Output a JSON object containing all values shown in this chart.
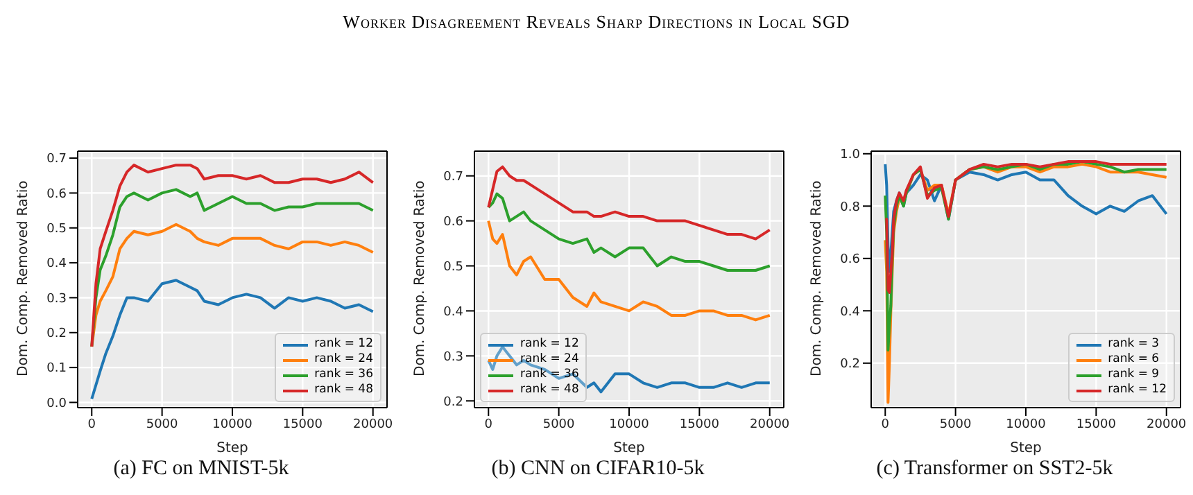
{
  "chart_data": [
    {
      "type": "line",
      "title": "(a) FC on MNIST-5k",
      "annotations": [
        "Worker Disagreement Reveals Sharp Directions in Local SGD"
      ],
      "xlabel": "Step",
      "ylabel": "Dom. Comp. Removed Ratio",
      "x": [
        0,
        300,
        600,
        1000,
        1500,
        2000,
        2500,
        3000,
        4000,
        5000,
        6000,
        7000,
        7500,
        8000,
        9000,
        10000,
        11000,
        12000,
        13000,
        14000,
        15000,
        16000,
        17000,
        18000,
        19000,
        20000
      ],
      "series": [
        {
          "name": "rank = 12",
          "color": "#1f77b4",
          "values": [
            0.01,
            0.05,
            0.09,
            0.14,
            0.19,
            0.25,
            0.3,
            0.3,
            0.29,
            0.34,
            0.35,
            0.33,
            0.32,
            0.29,
            0.28,
            0.3,
            0.31,
            0.3,
            0.27,
            0.3,
            0.29,
            0.3,
            0.29,
            0.27,
            0.28,
            0.26
          ]
        },
        {
          "name": "rank = 24",
          "color": "#ff7f0e",
          "values": [
            0.16,
            0.25,
            0.29,
            0.32,
            0.36,
            0.44,
            0.47,
            0.49,
            0.48,
            0.49,
            0.51,
            0.49,
            0.47,
            0.46,
            0.45,
            0.47,
            0.47,
            0.47,
            0.45,
            0.44,
            0.46,
            0.46,
            0.45,
            0.46,
            0.45,
            0.43
          ]
        },
        {
          "name": "rank = 36",
          "color": "#2ca02c",
          "values": [
            0.16,
            0.3,
            0.38,
            0.42,
            0.48,
            0.56,
            0.59,
            0.6,
            0.58,
            0.6,
            0.61,
            0.59,
            0.6,
            0.55,
            0.57,
            0.59,
            0.57,
            0.57,
            0.55,
            0.56,
            0.56,
            0.57,
            0.57,
            0.57,
            0.57,
            0.55
          ]
        },
        {
          "name": "rank = 48",
          "color": "#d62728",
          "values": [
            0.16,
            0.34,
            0.44,
            0.49,
            0.55,
            0.62,
            0.66,
            0.68,
            0.66,
            0.67,
            0.68,
            0.68,
            0.67,
            0.64,
            0.65,
            0.65,
            0.64,
            0.65,
            0.63,
            0.63,
            0.64,
            0.64,
            0.63,
            0.64,
            0.66,
            0.63
          ]
        }
      ],
      "xlim": [
        -1000,
        21000
      ],
      "xticks": [
        0,
        5000,
        10000,
        15000,
        20000
      ],
      "ylim": [
        -0.015,
        0.72
      ],
      "yticks": [
        {
          "value": 0,
          "label": "0.0"
        },
        0.1,
        0.2,
        0.3,
        0.4,
        0.5,
        0.6,
        0.7
      ],
      "grid": true,
      "legend": "bottom right"
    },
    {
      "type": "line",
      "title": "(b) CNN on CIFAR10-5k",
      "xlabel": "Step",
      "ylabel": "Dom. Comp. Removed Ratio",
      "x": [
        0,
        300,
        600,
        1000,
        1500,
        2000,
        2500,
        3000,
        4000,
        5000,
        6000,
        7000,
        7500,
        8000,
        9000,
        10000,
        11000,
        12000,
        13000,
        14000,
        15000,
        16000,
        17000,
        18000,
        19000,
        20000
      ],
      "series": [
        {
          "name": "rank = 12",
          "color": "#1f77b4",
          "values": [
            0.29,
            0.27,
            0.3,
            0.32,
            0.3,
            0.28,
            0.29,
            0.28,
            0.27,
            0.25,
            0.26,
            0.23,
            0.24,
            0.22,
            0.26,
            0.26,
            0.24,
            0.23,
            0.24,
            0.24,
            0.23,
            0.23,
            0.24,
            0.23,
            0.24,
            0.24
          ]
        },
        {
          "name": "rank = 24",
          "color": "#ff7f0e",
          "values": [
            0.6,
            0.56,
            0.55,
            0.57,
            0.5,
            0.48,
            0.51,
            0.52,
            0.47,
            0.47,
            0.43,
            0.41,
            0.44,
            0.42,
            0.41,
            0.4,
            0.42,
            0.41,
            0.39,
            0.39,
            0.4,
            0.4,
            0.39,
            0.39,
            0.38,
            0.39
          ]
        },
        {
          "name": "rank = 36",
          "color": "#2ca02c",
          "values": [
            0.63,
            0.64,
            0.66,
            0.65,
            0.6,
            0.61,
            0.62,
            0.6,
            0.58,
            0.56,
            0.55,
            0.56,
            0.53,
            0.54,
            0.52,
            0.54,
            0.54,
            0.5,
            0.52,
            0.51,
            0.51,
            0.5,
            0.49,
            0.49,
            0.49,
            0.5
          ]
        },
        {
          "name": "rank = 48",
          "color": "#d62728",
          "values": [
            0.63,
            0.67,
            0.71,
            0.72,
            0.7,
            0.69,
            0.69,
            0.68,
            0.66,
            0.64,
            0.62,
            0.62,
            0.61,
            0.61,
            0.62,
            0.61,
            0.61,
            0.6,
            0.6,
            0.6,
            0.59,
            0.58,
            0.57,
            0.57,
            0.56,
            0.58
          ]
        }
      ],
      "xlim": [
        -1000,
        21000
      ],
      "xticks": [
        0,
        5000,
        10000,
        15000,
        20000
      ],
      "ylim": [
        0.185,
        0.755
      ],
      "yticks": [
        0.2,
        0.3,
        0.4,
        0.5,
        0.6,
        0.7
      ],
      "grid": true,
      "legend": "bottom left"
    },
    {
      "type": "line",
      "title": "(c) Transformer on SST2-5k",
      "xlabel": "Step",
      "ylabel": "Dom. Comp. Removed Ratio",
      "x": [
        0,
        100,
        200,
        300,
        400,
        500,
        600,
        800,
        1000,
        1300,
        1500,
        2000,
        2500,
        3000,
        3500,
        4000,
        4500,
        5000,
        6000,
        7000,
        8000,
        9000,
        10000,
        11000,
        12000,
        13000,
        14000,
        15000,
        16000,
        17000,
        18000,
        19000,
        20000
      ],
      "series": [
        {
          "name": "rank = 3",
          "color": "#1f77b4",
          "values": [
            0.96,
            0.88,
            0.65,
            0.55,
            0.62,
            0.7,
            0.78,
            0.82,
            0.85,
            0.8,
            0.85,
            0.88,
            0.92,
            0.9,
            0.82,
            0.88,
            0.75,
            0.9,
            0.93,
            0.92,
            0.9,
            0.92,
            0.93,
            0.9,
            0.9,
            0.84,
            0.8,
            0.77,
            0.8,
            0.78,
            0.82,
            0.84,
            0.77
          ]
        },
        {
          "name": "rank = 6",
          "color": "#ff7f0e",
          "values": [
            0.67,
            0.55,
            0.05,
            0.2,
            0.4,
            0.55,
            0.7,
            0.78,
            0.83,
            0.82,
            0.85,
            0.92,
            0.94,
            0.86,
            0.88,
            0.88,
            0.77,
            0.9,
            0.94,
            0.95,
            0.93,
            0.95,
            0.95,
            0.93,
            0.95,
            0.95,
            0.96,
            0.95,
            0.93,
            0.93,
            0.93,
            0.92,
            0.91
          ]
        },
        {
          "name": "rank = 9",
          "color": "#2ca02c",
          "values": [
            0.84,
            0.7,
            0.25,
            0.35,
            0.42,
            0.6,
            0.72,
            0.8,
            0.84,
            0.8,
            0.85,
            0.92,
            0.94,
            0.84,
            0.86,
            0.87,
            0.75,
            0.9,
            0.94,
            0.95,
            0.94,
            0.95,
            0.96,
            0.94,
            0.96,
            0.96,
            0.97,
            0.96,
            0.95,
            0.93,
            0.94,
            0.94,
            0.94
          ]
        },
        {
          "name": "rank = 12",
          "color": "#d62728",
          "values": [
            0.75,
            0.75,
            0.48,
            0.47,
            0.55,
            0.62,
            0.75,
            0.82,
            0.85,
            0.82,
            0.86,
            0.92,
            0.95,
            0.83,
            0.87,
            0.88,
            0.76,
            0.9,
            0.94,
            0.96,
            0.95,
            0.96,
            0.96,
            0.95,
            0.96,
            0.97,
            0.97,
            0.97,
            0.96,
            0.96,
            0.96,
            0.96,
            0.96
          ]
        }
      ],
      "xlim": [
        -1000,
        21000
      ],
      "xticks": [
        0,
        5000,
        10000,
        15000,
        20000
      ],
      "ylim": [
        0.03,
        1.01
      ],
      "yticks": [
        0.2,
        0.4,
        0.6,
        0.8,
        {
          "value": 1,
          "label": "1.0"
        }
      ],
      "grid": true,
      "legend": "bottom right"
    }
  ]
}
